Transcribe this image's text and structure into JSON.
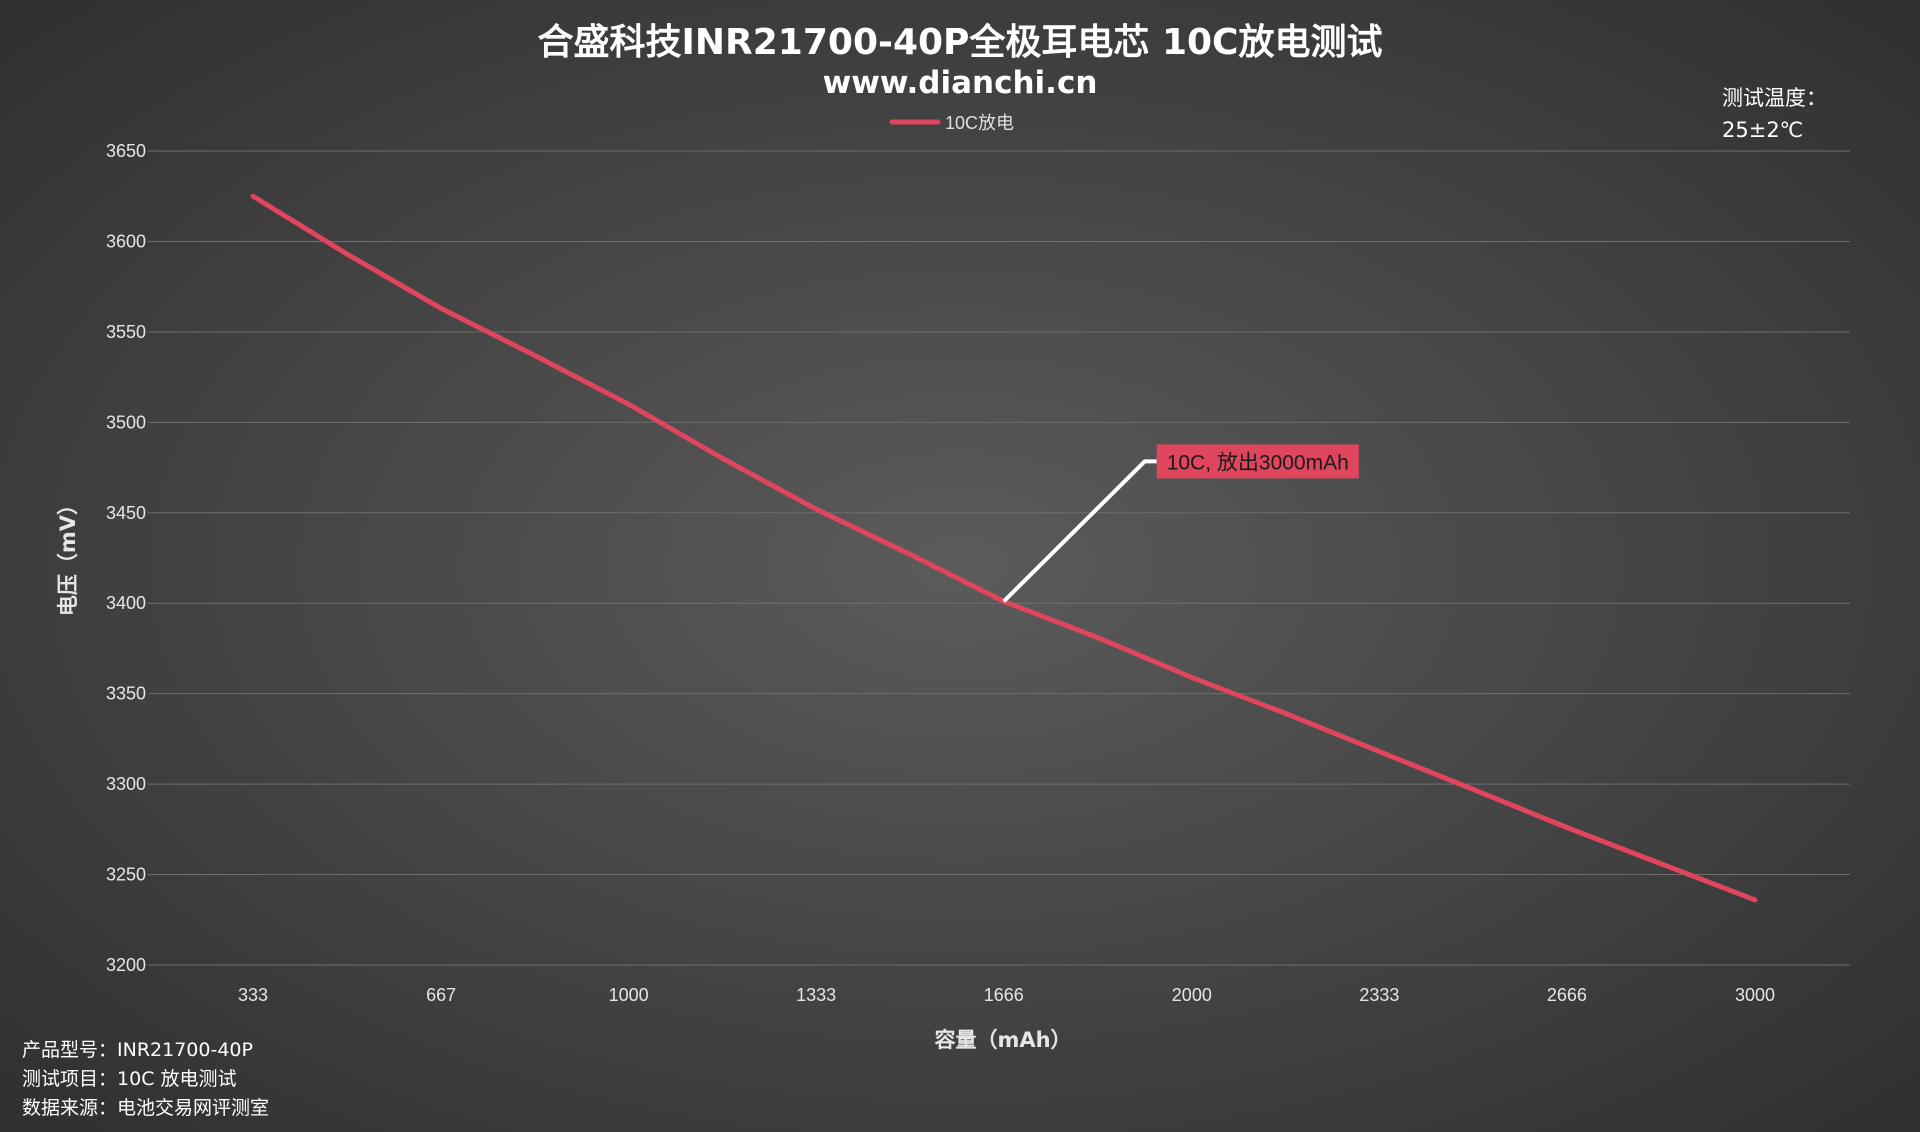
{
  "header": {
    "title": "合盛科技INR21700-40P全极耳电芯 10C放电测试",
    "subtitle": "www.dianchi.cn"
  },
  "temperature": {
    "label": "测试温度：",
    "value": "25±2℃"
  },
  "legend": {
    "label": "10C放电",
    "color": "#e0455e"
  },
  "annotation": {
    "text": "10C, 放出3000mAh",
    "point": {
      "x": 1666,
      "y": 3401
    }
  },
  "info": [
    {
      "label": "产品型号：",
      "value": "INR21700-40P"
    },
    {
      "label": "测试项目：",
      "value": "10C 放电测试"
    },
    {
      "label": "数据来源：",
      "value": "电池交易网评测室"
    }
  ],
  "colors": {
    "series": "#e0455e",
    "grid": "#6e6e6e",
    "annotation_bg": "#e0455e",
    "leader_line": "#ffffff"
  },
  "chart_data": {
    "type": "line",
    "xlabel": "容量（mAh）",
    "ylabel": "电压（mV）",
    "x_ticks": [
      "333",
      "667",
      "1000",
      "1333",
      "1666",
      "2000",
      "2333",
      "2666",
      "3000"
    ],
    "y_ticks": [
      3200,
      3250,
      3300,
      3350,
      3400,
      3450,
      3500,
      3550,
      3600,
      3650
    ],
    "ylim": [
      3200,
      3650
    ],
    "grid": true,
    "legend_position": "top-center",
    "series": [
      {
        "name": "10C放电",
        "x": [
          333,
          500,
          667,
          833,
          1000,
          1167,
          1333,
          1500,
          1666,
          1833,
          2000,
          2167,
          2333,
          2500,
          2666,
          2833,
          3000
        ],
        "y": [
          3625,
          3593,
          3563,
          3537,
          3510,
          3480,
          3452,
          3427,
          3401,
          3381,
          3359,
          3339,
          3318,
          3297,
          3276,
          3256,
          3236
        ]
      }
    ]
  }
}
